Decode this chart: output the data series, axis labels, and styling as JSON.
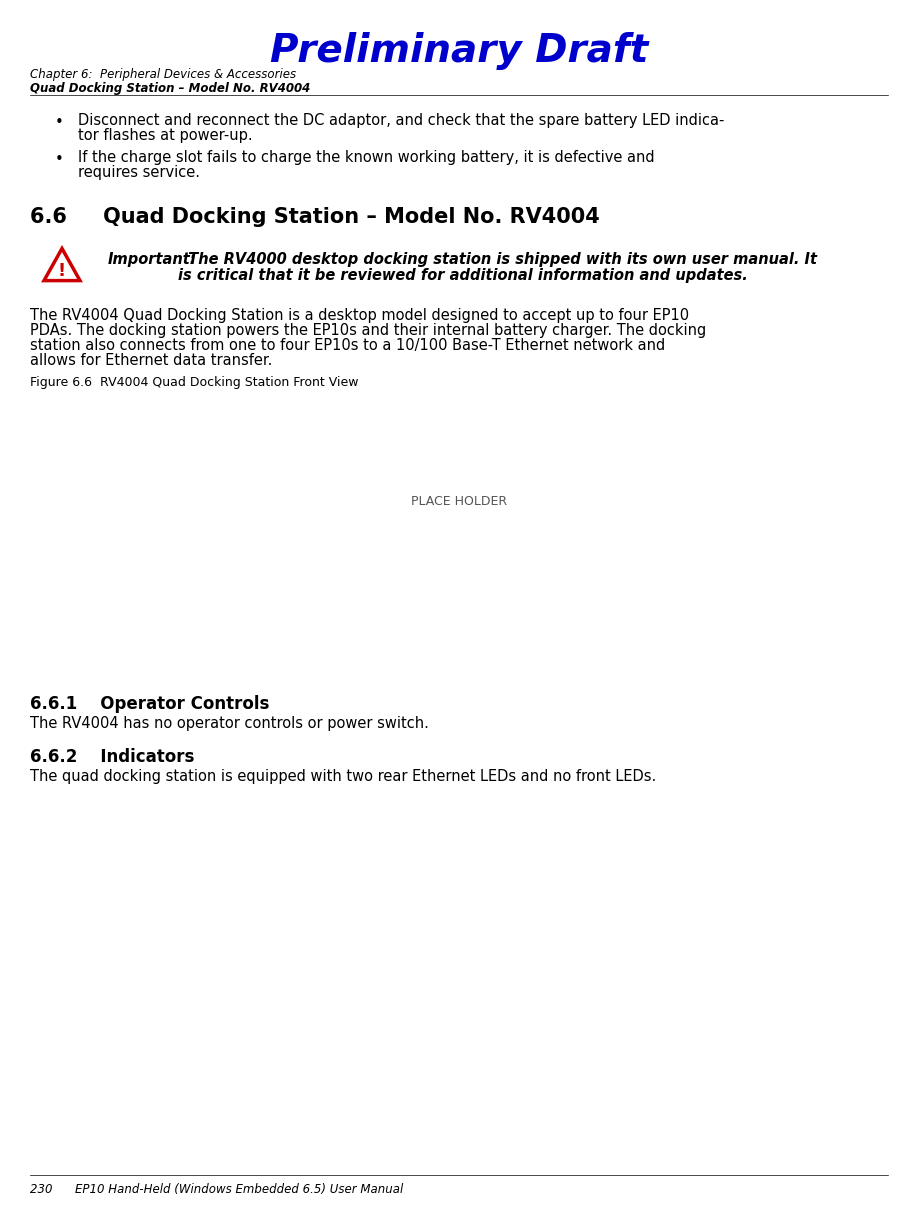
{
  "bg_color": "#ffffff",
  "title": "Preliminary Draft",
  "title_color": "#0000cc",
  "title_fontsize": 28,
  "header_line1": "Chapter 6:  Peripheral Devices & Accessories",
  "header_line2": "Quad Docking Station – Model No. RV4004",
  "footer_text": "230      EP10 Hand-Held (Windows Embedded 6.5) User Manual",
  "bullet1_line1": "Disconnect and reconnect the DC adaptor, and check that the spare battery LED indica-",
  "bullet1_line2": "tor flashes at power-up.",
  "bullet2_line1": "If the charge slot fails to charge the known working battery, it is defective and",
  "bullet2_line2": "requires service.",
  "section_heading": "6.6     Quad Docking Station – Model No. RV4004",
  "important_label": "Important:",
  "important_text1": "  The RV4000 desktop docking station is shipped with its own user manual. It",
  "important_text2": "is critical that it be reviewed for additional information and updates.",
  "body_text1": "The RV4004 Quad Docking Station is a desktop model designed to accept up to four EP10",
  "body_text2": "PDAs. The docking station powers the EP10s and their internal battery charger. The docking",
  "body_text3": "station also connects from one to four EP10s to a 10/100 Base-T Ethernet network and",
  "body_text4": "allows for Ethernet data transfer.",
  "figure_caption": "Figure 6.6  RV4004 Quad Docking Station Front View",
  "placeholder_text": "PLACE HOLDER",
  "subsection1": "6.6.1    Operator Controls",
  "subsection1_body": "The RV4004 has no operator controls or power switch.",
  "subsection2": "6.6.2    Indicators",
  "subsection2_body": "The quad docking station is equipped with two rear Ethernet LEDs and no front LEDs.",
  "body_fontsize": 10.5,
  "header_fontsize": 8.5,
  "section_fontsize": 15,
  "subsection_fontsize": 12,
  "footer_fontsize": 8.5,
  "caption_fontsize": 9,
  "placeholder_fontsize": 9,
  "important_fontsize": 10.5
}
